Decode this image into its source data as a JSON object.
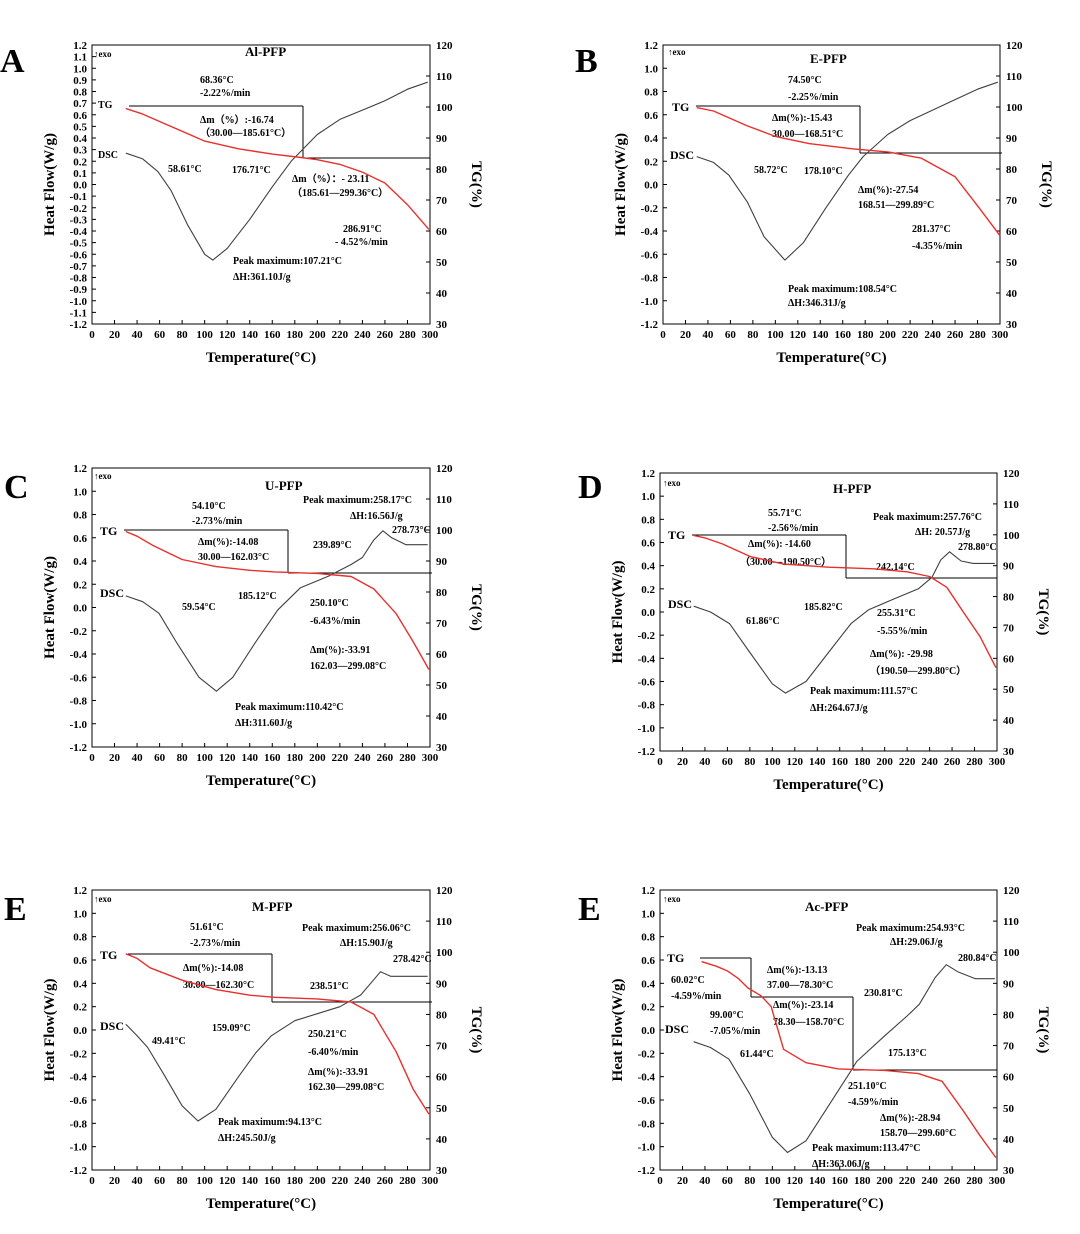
{
  "chart_data": [
    {
      "panel_letter": "A",
      "title": "Al-PFP",
      "type": "line",
      "exo_label": "↑exo",
      "xlabel": "Temperature(°C)",
      "ylabel": "Heat Flow(W/g)",
      "y2label": "TG(%)",
      "xlim": [
        0,
        300
      ],
      "ylim": [
        -1.2,
        1.2
      ],
      "y2lim": [
        30,
        120
      ],
      "x_ticks": [
        "0",
        "20",
        "40",
        "60",
        "80",
        "100",
        "120",
        "140",
        "160",
        "180",
        "200",
        "220",
        "240",
        "260",
        "280",
        "300"
      ],
      "y_ticks": [
        "-1.2",
        "-1.1",
        "-1.0",
        "-0.9",
        "-0.8",
        "-0.7",
        "-0.6",
        "-0.5",
        "-0.4",
        "-0.3",
        "-0.2",
        "-0.1",
        "0.0",
        "0.1",
        "0.2",
        "0.3",
        "0.4",
        "0.5",
        "0.6",
        "0.7",
        "0.8",
        "0.9",
        "1.0",
        "1.1",
        "1.2"
      ],
      "y2_ticks": [
        "30",
        "40",
        "50",
        "60",
        "70",
        "80",
        "90",
        "100",
        "110",
        "120"
      ],
      "tg_label": "TG",
      "dsc_label": "DSC",
      "series": [
        {
          "name": "DSC",
          "color": "#404040",
          "x": [
            30,
            45,
            58.6,
            70,
            85,
            100,
            107.2,
            120,
            140,
            160,
            176.7,
            200,
            220,
            240,
            260,
            280,
            298
          ],
          "y": [
            0.27,
            0.22,
            0.11,
            -0.05,
            -0.35,
            -0.6,
            -0.65,
            -0.55,
            -0.3,
            -0.02,
            0.2,
            0.43,
            0.56,
            0.64,
            0.72,
            0.82,
            0.88
          ]
        },
        {
          "name": "TG",
          "color": "#e8302c",
          "x": [
            30,
            45,
            68.4,
            100,
            130,
            160,
            185.6,
            200,
            220,
            240,
            260,
            280,
            299
          ],
          "y": [
            99.5,
            97.7,
            94,
            89,
            86.5,
            84.8,
            83.7,
            83,
            81.5,
            79,
            75.5,
            68.5,
            60.5
          ]
        }
      ],
      "annotations": [
        "68.36°C",
        "-2.22%/min",
        "Δm（%）:-16.74",
        "（30.00—185.61°C）",
        "58.61°C",
        "176.71°C",
        "Δm（%）：- 23.11",
        "（185.61—299.36°C）",
        "286.91°C",
        "- 4.52%/min",
        "Peak maximum:107.21°C",
        "ΔH:361.10J/g"
      ]
    },
    {
      "panel_letter": "B",
      "title": "E-PFP",
      "type": "line",
      "exo_label": "↑exo",
      "xlabel": "Temperature(°C)",
      "ylabel": "Heat Flow(W/g)",
      "y2label": "TG(%)",
      "xlim": [
        0,
        300
      ],
      "ylim": [
        -1.2,
        1.2
      ],
      "y2lim": [
        30,
        120
      ],
      "x_ticks": [
        "0",
        "20",
        "40",
        "60",
        "80",
        "100",
        "120",
        "140",
        "160",
        "180",
        "200",
        "220",
        "240",
        "260",
        "280",
        "300"
      ],
      "y_ticks": [
        "-1.2",
        "-1.0",
        "-0.8",
        "-0.6",
        "-0.4",
        "-0.2",
        "0.0",
        "0.2",
        "0.4",
        "0.6",
        "0.8",
        "1.0",
        "1.2"
      ],
      "y2_ticks": [
        "30",
        "40",
        "50",
        "60",
        "70",
        "80",
        "90",
        "100",
        "110",
        "120"
      ],
      "tg_label": "TG",
      "dsc_label": "DSC",
      "series": [
        {
          "name": "DSC",
          "color": "#404040",
          "x": [
            30,
            45,
            58.7,
            75,
            90,
            108.5,
            125,
            145,
            165,
            178.1,
            200,
            220,
            240,
            260,
            280,
            298
          ],
          "y": [
            0.24,
            0.19,
            0.08,
            -0.15,
            -0.45,
            -0.65,
            -0.5,
            -0.2,
            0.08,
            0.24,
            0.43,
            0.55,
            0.64,
            0.73,
            0.82,
            0.88
          ]
        },
        {
          "name": "TG",
          "color": "#e8302c",
          "x": [
            30,
            45,
            74.5,
            100,
            130,
            168.5,
            200,
            230,
            260,
            281.4,
            300
          ],
          "y": [
            99.8,
            98.7,
            94,
            90.5,
            88.2,
            86.5,
            85.5,
            83.5,
            77.5,
            67.5,
            58.5
          ]
        }
      ],
      "annotations": [
        "74.50°C",
        "-2.25%/min",
        "Δm(%):-15.43",
        "30.00—168.51°C",
        "58.72°C",
        "178.10°C",
        "Δm(%):-27.54",
        "168.51—299.89°C",
        "281.37°C",
        "-4.35%/min",
        "Peak maximum:108.54°C",
        "ΔH:346.31J/g"
      ]
    },
    {
      "panel_letter": "C",
      "title": "U-PFP",
      "type": "line",
      "exo_label": "↑exo",
      "xlabel": "Temperature(°C)",
      "ylabel": "Heat Flow(W/g)",
      "y2label": "TG(%)",
      "xlim": [
        0,
        300
      ],
      "ylim": [
        -1.2,
        1.2
      ],
      "y2lim": [
        30,
        120
      ],
      "x_ticks": [
        "0",
        "20",
        "40",
        "60",
        "80",
        "100",
        "120",
        "140",
        "160",
        "180",
        "200",
        "220",
        "240",
        "260",
        "280",
        "300"
      ],
      "y_ticks": [
        "-1.2",
        "-1.0",
        "-0.8",
        "-0.6",
        "-0.4",
        "-0.2",
        "0.0",
        "0.2",
        "0.4",
        "0.6",
        "0.8",
        "1.0",
        "1.2"
      ],
      "y2_ticks": [
        "30",
        "40",
        "50",
        "60",
        "70",
        "80",
        "90",
        "100",
        "110",
        "120"
      ],
      "tg_label": "TG",
      "dsc_label": "DSC",
      "series": [
        {
          "name": "DSC",
          "color": "#404040",
          "x": [
            30,
            45,
            59.5,
            75,
            95,
            110.4,
            125,
            145,
            165,
            185.1,
            210,
            230,
            240,
            250,
            258.2,
            266,
            278.7,
            290,
            298
          ],
          "y": [
            0.1,
            0.05,
            -0.05,
            -0.3,
            -0.6,
            -0.72,
            -0.6,
            -0.3,
            -0.02,
            0.17,
            0.27,
            0.37,
            0.43,
            0.58,
            0.66,
            0.6,
            0.54,
            0.54,
            0.54
          ]
        },
        {
          "name": "TG",
          "color": "#e8302c",
          "x": [
            30,
            40,
            54.1,
            80,
            110,
            140,
            162,
            200,
            230,
            250.1,
            270,
            285,
            299
          ],
          "y": [
            99.5,
            98,
            95,
            90.5,
            88.2,
            87,
            86.5,
            86,
            85,
            81,
            73,
            64,
            55
          ]
        }
      ],
      "annotations": [
        "54.10°C",
        "-2.73%/min",
        "Δm(%):-14.08",
        "30.00—162.03°C",
        "Peak maximum:258.17°C",
        "ΔH:16.56J/g",
        "278.73°C",
        "239.89°C",
        "59.54°C",
        "185.12°C",
        "250.10°C",
        "-6.43%/min",
        "Δm(%):-33.91",
        "162.03—299.08°C",
        "Peak maximum:110.42°C",
        "ΔH:311.60J/g"
      ]
    },
    {
      "panel_letter": "D",
      "title": "H-PFP",
      "type": "line",
      "exo_label": "↑exo",
      "xlabel": "Temperature(°C)",
      "ylabel": "Heat Flow(W/g)",
      "y2label": "TG(%)",
      "xlim": [
        0,
        300
      ],
      "ylim": [
        -1.2,
        1.2
      ],
      "y2lim": [
        30,
        120
      ],
      "x_ticks": [
        "0",
        "20",
        "40",
        "60",
        "80",
        "100",
        "120",
        "140",
        "160",
        "180",
        "200",
        "220",
        "240",
        "260",
        "280",
        "300"
      ],
      "y_ticks": [
        "-1.2",
        "-1.0",
        "-0.8",
        "-0.6",
        "-0.4",
        "-0.2",
        "0.0",
        "0.2",
        "0.4",
        "0.6",
        "0.8",
        "1.0",
        "1.2"
      ],
      "y2_ticks": [
        "30",
        "40",
        "50",
        "60",
        "70",
        "80",
        "90",
        "100",
        "110",
        "120"
      ],
      "tg_label": "TG",
      "dsc_label": "DSC",
      "series": [
        {
          "name": "DSC",
          "color": "#404040",
          "x": [
            30,
            45,
            61.9,
            80,
            100,
            111.6,
            130,
            150,
            170,
            185.8,
            210,
            230,
            242.1,
            250,
            257.8,
            268,
            278.8,
            290,
            298
          ],
          "y": [
            0.05,
            0.0,
            -0.1,
            -0.35,
            -0.62,
            -0.7,
            -0.6,
            -0.35,
            -0.1,
            0.02,
            0.12,
            0.2,
            0.3,
            0.45,
            0.52,
            0.44,
            0.42,
            0.42,
            0.42
          ]
        },
        {
          "name": "TG",
          "color": "#e8302c",
          "x": [
            30,
            40,
            55.7,
            80,
            110,
            150,
            190.5,
            220,
            240,
            255.3,
            270,
            285,
            299
          ],
          "y": [
            99.8,
            99,
            97,
            93,
            90.5,
            89.5,
            89,
            88,
            86.5,
            83,
            75,
            67,
            57
          ]
        }
      ],
      "annotations": [
        "55.71°C",
        "-2.56%/min",
        "Δm(%): -14.60",
        "（30.00—190.50°C）",
        "Peak maximum:257.76°C",
        "ΔH: 20.57J/g",
        "278.80°C",
        "242.14°C",
        "61.86°C",
        "185.82°C",
        "255.31°C",
        "-5.55%/min",
        "Δm(%): -29.98",
        "（190.50—299.80°C）",
        "Peak maximum:111.57°C",
        "ΔH:264.67J/g"
      ]
    },
    {
      "panel_letter": "E",
      "title": "M-PFP",
      "type": "line",
      "exo_label": "↑exo",
      "xlabel": "Temperature(°C)",
      "ylabel": "Heat Flow(W/g)",
      "y2label": "TG(%)",
      "xlim": [
        0,
        300
      ],
      "ylim": [
        -1.2,
        1.2
      ],
      "y2lim": [
        30,
        120
      ],
      "x_ticks": [
        "0",
        "20",
        "40",
        "60",
        "80",
        "100",
        "120",
        "140",
        "160",
        "180",
        "200",
        "220",
        "240",
        "260",
        "280",
        "300"
      ],
      "y_ticks": [
        "-1.2",
        "-1.0",
        "-0.8",
        "-0.6",
        "-0.4",
        "-0.2",
        "0.0",
        "0.2",
        "0.4",
        "0.6",
        "0.8",
        "1.0",
        "1.2"
      ],
      "y2_ticks": [
        "30",
        "40",
        "50",
        "60",
        "70",
        "80",
        "90",
        "100",
        "110",
        "120"
      ],
      "tg_label": "TG",
      "dsc_label": "DSC",
      "series": [
        {
          "name": "DSC",
          "color": "#404040",
          "x": [
            30,
            40,
            49.4,
            65,
            80,
            94.1,
            110,
            130,
            145,
            159.1,
            180,
            200,
            220,
            238.5,
            250,
            256.1,
            265,
            278.4,
            290,
            298
          ],
          "y": [
            0.05,
            -0.05,
            -0.15,
            -0.4,
            -0.65,
            -0.78,
            -0.68,
            -0.4,
            -0.2,
            -0.05,
            0.08,
            0.14,
            0.2,
            0.3,
            0.43,
            0.5,
            0.46,
            0.46,
            0.46,
            0.46
          ]
        },
        {
          "name": "TG",
          "color": "#e8302c",
          "x": [
            30,
            40,
            51.6,
            80,
            110,
            140,
            162.3,
            200,
            230,
            250.2,
            270,
            285,
            299
          ],
          "y": [
            99.5,
            98,
            95,
            91,
            88,
            86.2,
            85.5,
            85,
            84,
            80,
            68,
            56,
            48
          ]
        }
      ],
      "annotations": [
        "51.61°C",
        "-2.73%/min",
        "Δm(%):-14.08",
        "30.00—162.30°C",
        "Peak maximum:256.06°C",
        "ΔH:15.90J/g",
        "278.42°C",
        "238.51°C",
        "49.41°C",
        "159.09°C",
        "250.21°C",
        "-6.40%/min",
        "Δm(%):-33.91",
        "162.30—299.08°C",
        "Peak maximum:94.13°C",
        "ΔH:245.50J/g"
      ]
    },
    {
      "panel_letter": "E",
      "title": "Ac-PFP",
      "type": "line",
      "exo_label": "↑exo",
      "xlabel": "Temperature(°C)",
      "ylabel": "Heat Flow(W/g)",
      "y2label": "TG(%)",
      "xlim": [
        0,
        300
      ],
      "ylim": [
        -1.2,
        1.2
      ],
      "y2lim": [
        30,
        120
      ],
      "x_ticks": [
        "0",
        "20",
        "40",
        "60",
        "80",
        "100",
        "120",
        "140",
        "160",
        "180",
        "200",
        "220",
        "240",
        "260",
        "280",
        "300"
      ],
      "y_ticks": [
        "-1.2",
        "-1.0",
        "-0.8",
        "-0.6",
        "-0.4",
        "-0.2",
        "0.0",
        "0.2",
        "0.4",
        "0.6",
        "0.8",
        "1.0",
        "1.2"
      ],
      "y2_ticks": [
        "30",
        "40",
        "50",
        "60",
        "70",
        "80",
        "90",
        "100",
        "110",
        "120"
      ],
      "tg_label": "TG",
      "dsc_label": "DSC",
      "series": [
        {
          "name": "DSC",
          "color": "#404040",
          "x": [
            30,
            45,
            61.4,
            80,
            100,
            113.5,
            130,
            150,
            170,
            175.1,
            200,
            220,
            230.8,
            245,
            254.9,
            265,
            280.8,
            290,
            298
          ],
          "y": [
            -0.1,
            -0.15,
            -0.25,
            -0.55,
            -0.92,
            -1.05,
            -0.95,
            -0.65,
            -0.35,
            -0.27,
            -0.05,
            0.12,
            0.22,
            0.45,
            0.56,
            0.5,
            0.44,
            0.44,
            0.44
          ]
        },
        {
          "name": "TG",
          "color": "#e8302c",
          "x": [
            37,
            50,
            60,
            70,
            78.3,
            90,
            99,
            110,
            130,
            158.7,
            200,
            230,
            251.1,
            270,
            285,
            299
          ],
          "y": [
            97,
            95.5,
            94,
            91.5,
            88.5,
            86,
            82.5,
            68.8,
            64.5,
            62.5,
            62,
            61,
            58.5,
            49,
            41,
            34
          ]
        }
      ],
      "annotations": [
        "Peak maximum:254.93°C",
        "ΔH:29.06J/g",
        "280.84°C",
        "60.02°C",
        "-4.59%/min",
        "Δm(%):-13.13",
        "37.00—78.30°C",
        "Δm(%):-23.14",
        "99.00°C",
        "-7.05%/min",
        "78.30—158.70°C",
        "230.81°C",
        "61.44°C",
        "175.13°C",
        "251.10°C",
        "-4.59%/min",
        "Δm(%):-28.94",
        "158.70—299.60°C",
        "Peak maximum:113.47°C",
        "ΔH:363.06J/g"
      ]
    }
  ]
}
